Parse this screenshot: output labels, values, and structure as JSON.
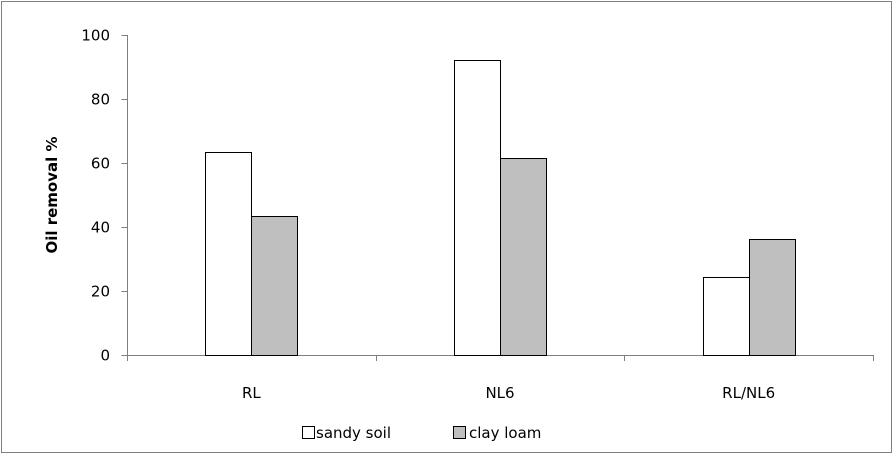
{
  "chart_data": {
    "type": "bar",
    "categories": [
      "RL",
      "NL6",
      "RL/NL6"
    ],
    "series": [
      {
        "name": "sandy soil",
        "values": [
          63.5,
          92.3,
          24.5
        ],
        "color": "#ffffff"
      },
      {
        "name": "clay loam",
        "values": [
          43.3,
          61.6,
          36.1
        ],
        "color": "#bfbfbf"
      }
    ],
    "title": "",
    "xlabel": "",
    "ylabel": "Oil removal %",
    "ylim": [
      0,
      100
    ],
    "yticks": [
      "0",
      "20",
      "40",
      "60",
      "80",
      "100"
    ],
    "grid": false,
    "legend_position": "bottom",
    "border_color": "#7f7f7f",
    "axis_color": "#7f7f7f",
    "bar_stroke_color": "#000000"
  }
}
